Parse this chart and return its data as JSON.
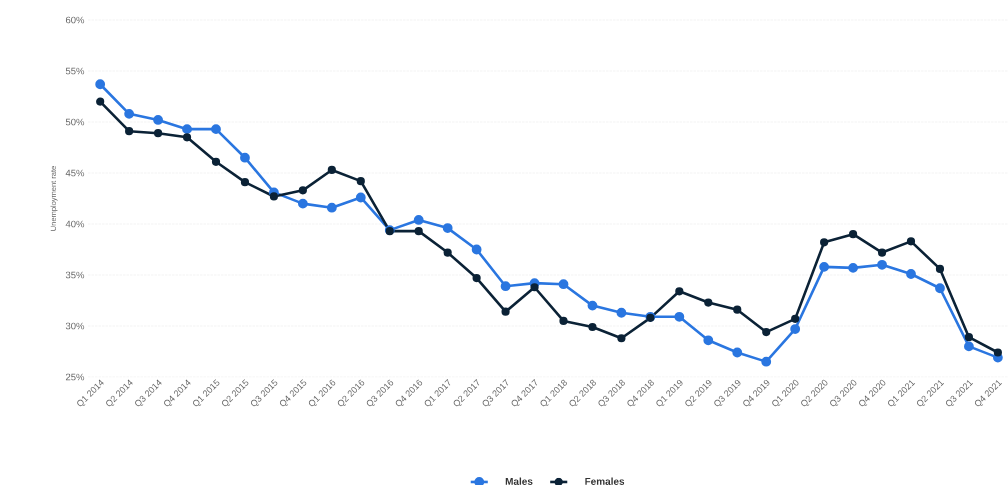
{
  "chart_data": {
    "type": "line",
    "ylabel": "Unemployment rate",
    "categories": [
      "Q1 2014",
      "Q2 2014",
      "Q3 2014",
      "Q4 2014",
      "Q1 2015",
      "Q2 2015",
      "Q3 2015",
      "Q4 2015",
      "Q1 2016",
      "Q2 2016",
      "Q3 2016",
      "Q4 2016",
      "Q1 2017",
      "Q2 2017",
      "Q3 2017",
      "Q4 2017",
      "Q1 2018",
      "Q2 2018",
      "Q3 2018",
      "Q4 2018",
      "Q1 2019",
      "Q2 2019",
      "Q3 2019",
      "Q4 2019",
      "Q1 2020",
      "Q2 2020",
      "Q3 2020",
      "Q4 2020",
      "Q1 2021",
      "Q2 2021",
      "Q3 2021",
      "Q4 2021"
    ],
    "series": [
      {
        "name": "Males",
        "color": "#2a76e0",
        "values": [
          53.7,
          50.8,
          50.2,
          49.3,
          49.3,
          46.5,
          43.1,
          42.0,
          41.6,
          42.6,
          39.4,
          40.4,
          39.6,
          37.5,
          33.9,
          34.2,
          34.1,
          32.0,
          31.3,
          30.9,
          30.9,
          28.6,
          27.4,
          26.5,
          29.7,
          35.8,
          35.7,
          36.0,
          35.1,
          33.7,
          28.0,
          26.9
        ]
      },
      {
        "name": "Females",
        "color": "#0b2236",
        "values": [
          52.0,
          49.1,
          48.9,
          48.5,
          46.1,
          44.1,
          42.7,
          43.3,
          45.3,
          44.2,
          39.3,
          39.3,
          37.2,
          34.7,
          31.4,
          33.8,
          30.5,
          29.9,
          28.8,
          30.8,
          33.4,
          32.3,
          31.6,
          29.4,
          30.7,
          38.2,
          39.0,
          37.2,
          38.3,
          35.6,
          28.9,
          27.4
        ]
      }
    ],
    "ylim": [
      25,
      60
    ],
    "yticks": [
      {
        "value": 25,
        "label": "25%"
      },
      {
        "value": 30,
        "label": "30%"
      },
      {
        "value": 35,
        "label": "35%"
      },
      {
        "value": 40,
        "label": "40%"
      },
      {
        "value": 45,
        "label": "45%"
      },
      {
        "value": 50,
        "label": "50%"
      },
      {
        "value": 55,
        "label": "55%"
      },
      {
        "value": 60,
        "label": "60%"
      }
    ],
    "grid": "y",
    "legend": "bottom",
    "marker": "circle",
    "line_style": "solid"
  }
}
